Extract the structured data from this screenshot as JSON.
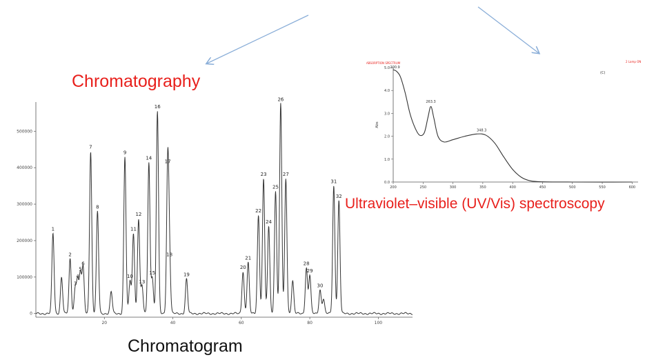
{
  "labels": {
    "chromatography": "Chromatography",
    "uv_vis": "Ultraviolet–visible (UV/Vis) spectroscopy",
    "chromatogram": "Chromatogram"
  },
  "colors": {
    "label_red": "#e8201c",
    "arrow_blue": "#8aaed8",
    "trace": "#333333"
  },
  "chart_data": [
    {
      "type": "line",
      "xlim": [
        0,
        110
      ],
      "ylim": [
        -10000,
        580000
      ],
      "x_ticks": [
        "20",
        "40",
        "60",
        "80",
        "100"
      ],
      "y_ticks": [
        "0",
        "100000",
        "200000",
        "300000",
        "400000",
        "500000"
      ],
      "peaks": [
        {
          "label": "1",
          "x": 5,
          "y": 220000
        },
        {
          "label": "",
          "x": 7.5,
          "y": 100000
        },
        {
          "label": "2",
          "x": 10,
          "y": 150000
        },
        {
          "label": "3",
          "x": 11.5,
          "y": 70000
        },
        {
          "label": "4",
          "x": 12.2,
          "y": 90000
        },
        {
          "label": "5",
          "x": 13,
          "y": 110000
        },
        {
          "label": "6",
          "x": 13.8,
          "y": 125000
        },
        {
          "label": "7",
          "x": 16,
          "y": 445000
        },
        {
          "label": "8",
          "x": 18,
          "y": 280000
        },
        {
          "label": "",
          "x": 22,
          "y": 60000
        },
        {
          "label": "9",
          "x": 26,
          "y": 430000
        },
        {
          "label": "10",
          "x": 27.5,
          "y": 90000
        },
        {
          "label": "11",
          "x": 28.5,
          "y": 220000
        },
        {
          "label": "12",
          "x": 30,
          "y": 260000
        },
        {
          "label": "13",
          "x": 31,
          "y": 75000
        },
        {
          "label": "14",
          "x": 33,
          "y": 415000
        },
        {
          "label": "15",
          "x": 34,
          "y": 100000
        },
        {
          "label": "16",
          "x": 35.5,
          "y": 555000
        },
        {
          "label": "17",
          "x": 38.5,
          "y": 405000
        },
        {
          "label": "18",
          "x": 39,
          "y": 150000
        },
        {
          "label": "19",
          "x": 44,
          "y": 95000
        },
        {
          "label": "20",
          "x": 60.5,
          "y": 115000
        },
        {
          "label": "21",
          "x": 62,
          "y": 140000
        },
        {
          "label": "22",
          "x": 65,
          "y": 270000
        },
        {
          "label": "23",
          "x": 66.5,
          "y": 370000
        },
        {
          "label": "24",
          "x": 68,
          "y": 240000
        },
        {
          "label": "25",
          "x": 70,
          "y": 335000
        },
        {
          "label": "26",
          "x": 71.5,
          "y": 575000
        },
        {
          "label": "27",
          "x": 73,
          "y": 370000
        },
        {
          "label": "",
          "x": 75,
          "y": 90000
        },
        {
          "label": "28",
          "x": 79,
          "y": 125000
        },
        {
          "label": "29",
          "x": 80,
          "y": 105000
        },
        {
          "label": "30",
          "x": 83,
          "y": 65000
        },
        {
          "label": "",
          "x": 84,
          "y": 40000
        },
        {
          "label": "31",
          "x": 87,
          "y": 350000
        },
        {
          "label": "32",
          "x": 88.5,
          "y": 310000
        }
      ]
    },
    {
      "type": "line",
      "xlim": [
        200,
        610
      ],
      "ylim": [
        0,
        5
      ],
      "ylabel": "Abs",
      "peak_labels": [
        {
          "text": "200.9",
          "x": 203,
          "y": 4.85
        },
        {
          "text": "263.3",
          "x": 263,
          "y": 3.35
        },
        {
          "text": "348.3",
          "x": 348,
          "y": 2.1
        }
      ],
      "curve": [
        [
          200,
          4.9
        ],
        [
          205,
          4.85
        ],
        [
          212,
          4.6
        ],
        [
          220,
          3.9
        ],
        [
          228,
          3.0
        ],
        [
          236,
          2.4
        ],
        [
          244,
          2.05
        ],
        [
          252,
          2.15
        ],
        [
          258,
          2.8
        ],
        [
          263,
          3.3
        ],
        [
          268,
          2.8
        ],
        [
          275,
          2.0
        ],
        [
          285,
          1.75
        ],
        [
          300,
          1.85
        ],
        [
          320,
          2.0
        ],
        [
          340,
          2.1
        ],
        [
          355,
          2.05
        ],
        [
          370,
          1.7
        ],
        [
          385,
          1.1
        ],
        [
          400,
          0.55
        ],
        [
          415,
          0.2
        ],
        [
          430,
          0.05
        ],
        [
          450,
          0.01
        ],
        [
          500,
          0.0
        ],
        [
          600,
          0.0
        ]
      ],
      "header_left": "ABSORPTION SPECTRUM",
      "header_right": "2 Lamp ON",
      "corner_tag": "(C)"
    }
  ]
}
